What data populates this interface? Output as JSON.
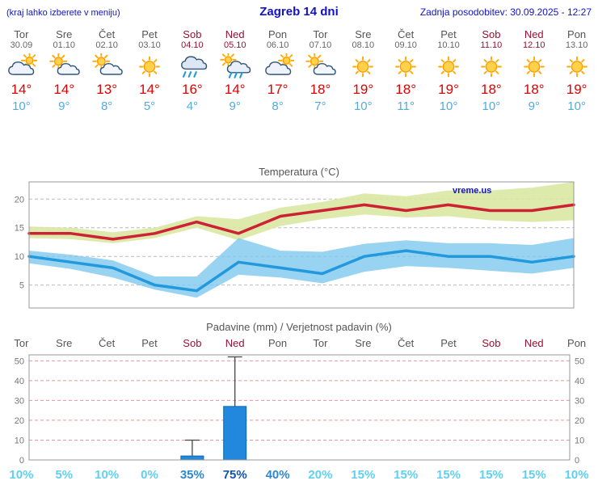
{
  "header": {
    "left_note": "(kraj lahko izberete v meniju)",
    "title": "Zagreb 14 dni",
    "updated": "Zadnja posodobitev: 30.09.2025 - 12:27"
  },
  "days": [
    {
      "name": "Tor",
      "date": "30.09",
      "icon": "cloud-sun",
      "high": 14,
      "low": 10,
      "weekend": false
    },
    {
      "name": "Sre",
      "date": "01.10",
      "icon": "partly",
      "high": 14,
      "low": 9,
      "weekend": false
    },
    {
      "name": "Čet",
      "date": "02.10",
      "icon": "partly",
      "high": 13,
      "low": 8,
      "weekend": false
    },
    {
      "name": "Pet",
      "date": "03.10",
      "icon": "sun",
      "high": 14,
      "low": 5,
      "weekend": false
    },
    {
      "name": "Sob",
      "date": "04.10",
      "icon": "rain",
      "high": 16,
      "low": 4,
      "weekend": true
    },
    {
      "name": "Ned",
      "date": "05.10",
      "icon": "sun-rain",
      "high": 14,
      "low": 9,
      "weekend": true
    },
    {
      "name": "Pon",
      "date": "06.10",
      "icon": "cloud-sun",
      "high": 17,
      "low": 8,
      "weekend": false
    },
    {
      "name": "Tor",
      "date": "07.10",
      "icon": "partly",
      "high": 18,
      "low": 7,
      "weekend": false
    },
    {
      "name": "Sre",
      "date": "08.10",
      "icon": "sun",
      "high": 19,
      "low": 10,
      "weekend": false
    },
    {
      "name": "Čet",
      "date": "09.10",
      "icon": "sun",
      "high": 18,
      "low": 11,
      "weekend": false
    },
    {
      "name": "Pet",
      "date": "10.10",
      "icon": "sun",
      "high": 19,
      "low": 10,
      "weekend": false
    },
    {
      "name": "Sob",
      "date": "11.10",
      "icon": "sun",
      "high": 18,
      "low": 10,
      "weekend": true
    },
    {
      "name": "Ned",
      "date": "12.10",
      "icon": "sun",
      "high": 18,
      "low": 9,
      "weekend": true
    },
    {
      "name": "Pon",
      "date": "13.10",
      "icon": "sun",
      "high": 19,
      "low": 10,
      "weekend": false
    }
  ],
  "chart_data": [
    {
      "type": "line",
      "title": "Temperatura (°C)",
      "watermark": "vreme.us",
      "categories": [
        "Tor 30.09",
        "Sre 01.10",
        "Čet 02.10",
        "Pet 03.10",
        "Sob 04.10",
        "Ned 05.10",
        "Pon 06.10",
        "Tor 07.10",
        "Sre 08.10",
        "Čet 09.10",
        "Pet 10.10",
        "Sob 11.10",
        "Ned 12.10",
        "Pon 13.10"
      ],
      "series": [
        {
          "name": "max_temp",
          "values": [
            14,
            14,
            13,
            14,
            16,
            14,
            17,
            18,
            19,
            18,
            19,
            18,
            18,
            19
          ]
        },
        {
          "name": "max_band_upper",
          "values": [
            15.2,
            15,
            14.2,
            15,
            17,
            16.5,
            18.5,
            19.5,
            21,
            20.5,
            21.5,
            21.5,
            22,
            23
          ]
        },
        {
          "name": "max_band_lower",
          "values": [
            13.2,
            13,
            12.3,
            13.2,
            15,
            12.8,
            15.3,
            16.5,
            17.3,
            16.8,
            17,
            16.3,
            16,
            16.3
          ]
        },
        {
          "name": "min_temp",
          "values": [
            10,
            9,
            8,
            5,
            4,
            9,
            8,
            7,
            10,
            11,
            10,
            10,
            9,
            10
          ]
        },
        {
          "name": "min_band_upper",
          "values": [
            11,
            10.3,
            9.3,
            6.5,
            6.5,
            13.2,
            11,
            10.8,
            12.2,
            12.8,
            12.3,
            12.3,
            12,
            13.2
          ]
        },
        {
          "name": "min_band_lower",
          "values": [
            8.8,
            7.8,
            6.3,
            4.2,
            2.8,
            6.8,
            6.3,
            5.3,
            7.3,
            8.3,
            8,
            7.5,
            7,
            8
          ]
        }
      ],
      "ylim": [
        1,
        23
      ],
      "yticks": [
        5,
        10,
        15,
        20
      ],
      "grid": true,
      "legend": "none"
    },
    {
      "type": "bar",
      "title": "Padavine (mm) / Verjetnost padavin (%)",
      "categories": [
        "Tor",
        "Sre",
        "Čet",
        "Pet",
        "Sob",
        "Ned",
        "Pon",
        "Tor",
        "Sre",
        "Čet",
        "Pet",
        "Sob",
        "Ned",
        "Pon"
      ],
      "weekend_flags": [
        false,
        false,
        false,
        false,
        true,
        true,
        false,
        false,
        false,
        false,
        false,
        true,
        true,
        false
      ],
      "values": [
        0,
        0,
        0,
        0,
        2,
        27,
        0,
        0,
        0,
        0,
        0,
        0,
        0,
        0
      ],
      "whisker_max": [
        null,
        null,
        null,
        null,
        10,
        52,
        null,
        null,
        null,
        null,
        null,
        null,
        null,
        null
      ],
      "probabilities": [
        10,
        5,
        10,
        0,
        35,
        75,
        40,
        20,
        15,
        15,
        15,
        15,
        15,
        10
      ],
      "ylim": [
        0,
        53
      ],
      "yticks": [
        0,
        10,
        20,
        30,
        40,
        50
      ],
      "grid": true,
      "legend": "none"
    }
  ],
  "colors": {
    "header_blue": "#1111cc",
    "weekend_red": "#991133",
    "high_red": "#e00000",
    "low_blue": "#55aadd",
    "temp_max_line": "#cc2233",
    "temp_min_line": "#2299dd",
    "temp_max_band": "#d9e8a3",
    "temp_min_band": "#7fc8ef",
    "grid_gray": "#bbbbbb",
    "grid_pink": "#e89898",
    "box_border": "#999999",
    "bar_fill": "#2288dd",
    "bar_stroke": "#1166aa",
    "whisker": "#444444",
    "prob_light": "#5fd0f0",
    "prob_mid": "#2f88cc",
    "prob_dark": "#1155aa"
  }
}
